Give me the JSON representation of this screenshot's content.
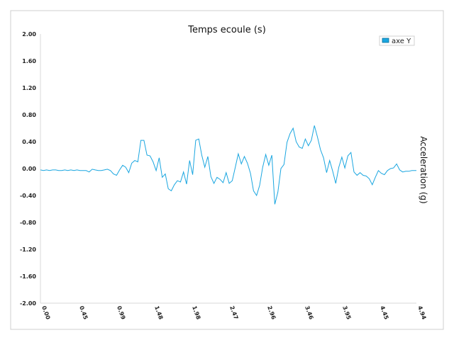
{
  "chart_data": {
    "type": "line",
    "title": "Temps ecoule (s)",
    "xlabel": "",
    "ylabel": "Acceleration (g)",
    "x_tick_labels": [
      "0.00",
      "0.45",
      "0.99",
      "1.48",
      "1.98",
      "2.47",
      "2.96",
      "3.46",
      "3.95",
      "4.45",
      "4.94"
    ],
    "y_tick_labels": [
      "2.00",
      "1.60",
      "1.20",
      "0.80",
      "0.40",
      "0.00",
      "-0.40",
      "-0.80",
      "-1.20",
      "-1.60",
      "-2.00"
    ],
    "xlim": [
      0,
      4.94
    ],
    "ylim": [
      -2.0,
      2.0
    ],
    "grid": false,
    "legend_position": "top-right",
    "series": [
      {
        "name": "axe Y",
        "color": "#1aa6e0",
        "x": [
          0.0,
          0.04,
          0.08,
          0.12,
          0.16,
          0.2,
          0.24,
          0.28,
          0.32,
          0.36,
          0.4,
          0.44,
          0.48,
          0.52,
          0.56,
          0.6,
          0.64,
          0.68,
          0.72,
          0.76,
          0.8,
          0.84,
          0.88,
          0.92,
          0.96,
          1.0,
          1.04,
          1.08,
          1.12,
          1.16,
          1.2,
          1.24,
          1.28,
          1.32,
          1.36,
          1.4,
          1.44,
          1.48,
          1.52,
          1.56,
          1.6,
          1.64,
          1.68,
          1.72,
          1.76,
          1.8,
          1.84,
          1.88,
          1.92,
          1.96,
          2.0,
          2.04,
          2.08,
          2.12,
          2.16,
          2.2,
          2.24,
          2.28,
          2.32,
          2.36,
          2.4,
          2.44,
          2.48,
          2.52,
          2.56,
          2.6,
          2.64,
          2.68,
          2.72,
          2.76,
          2.8,
          2.84,
          2.88,
          2.92,
          2.96,
          3.0,
          3.04,
          3.08,
          3.12,
          3.16,
          3.2,
          3.24,
          3.28,
          3.32,
          3.36,
          3.4,
          3.44,
          3.48,
          3.52,
          3.56,
          3.6,
          3.64,
          3.68,
          3.72,
          3.76,
          3.8,
          3.84,
          3.88,
          3.92,
          3.96,
          4.0,
          4.04,
          4.08,
          4.12,
          4.16,
          4.2,
          4.24,
          4.28,
          4.32,
          4.36,
          4.4,
          4.44,
          4.48,
          4.52,
          4.56,
          4.6,
          4.64,
          4.68,
          4.72,
          4.76,
          4.8,
          4.84,
          4.88,
          4.94
        ],
        "y": [
          -0.02,
          -0.03,
          -0.02,
          -0.03,
          -0.02,
          -0.02,
          -0.03,
          -0.03,
          -0.02,
          -0.03,
          -0.02,
          -0.03,
          -0.02,
          -0.03,
          -0.03,
          -0.03,
          -0.05,
          -0.01,
          -0.02,
          -0.03,
          -0.03,
          -0.02,
          -0.01,
          -0.03,
          -0.08,
          -0.1,
          -0.02,
          0.05,
          0.02,
          -0.06,
          0.08,
          0.12,
          0.1,
          0.42,
          0.42,
          0.2,
          0.19,
          0.1,
          -0.03,
          0.16,
          -0.13,
          -0.08,
          -0.3,
          -0.33,
          -0.24,
          -0.18,
          -0.2,
          -0.05,
          -0.23,
          0.12,
          -0.09,
          0.42,
          0.44,
          0.2,
          0.02,
          0.18,
          -0.12,
          -0.22,
          -0.13,
          -0.16,
          -0.21,
          -0.06,
          -0.22,
          -0.18,
          0.02,
          0.22,
          0.07,
          0.18,
          0.08,
          -0.07,
          -0.33,
          -0.4,
          -0.25,
          0.02,
          0.21,
          0.05,
          0.2,
          -0.53,
          -0.35,
          0.0,
          0.06,
          0.39,
          0.52,
          0.6,
          0.4,
          0.32,
          0.3,
          0.44,
          0.34,
          0.42,
          0.64,
          0.47,
          0.28,
          0.16,
          -0.06,
          0.12,
          -0.04,
          -0.22,
          0.02,
          0.17,
          0.01,
          0.19,
          0.24,
          -0.05,
          -0.1,
          -0.06,
          -0.1,
          -0.11,
          -0.15,
          -0.24,
          -0.13,
          -0.03,
          -0.07,
          -0.09,
          -0.03,
          0.0,
          0.01,
          0.07,
          -0.02,
          -0.05,
          -0.04,
          -0.04,
          -0.03,
          -0.03
        ]
      }
    ]
  }
}
